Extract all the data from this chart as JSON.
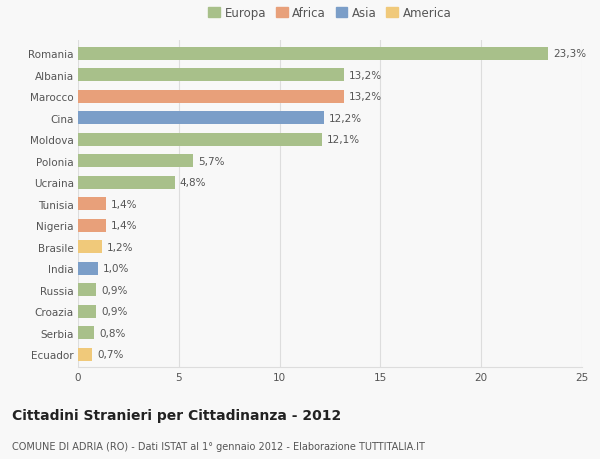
{
  "countries": [
    "Romania",
    "Albania",
    "Marocco",
    "Cina",
    "Moldova",
    "Polonia",
    "Ucraina",
    "Tunisia",
    "Nigeria",
    "Brasile",
    "India",
    "Russia",
    "Croazia",
    "Serbia",
    "Ecuador"
  ],
  "values": [
    23.3,
    13.2,
    13.2,
    12.2,
    12.1,
    5.7,
    4.8,
    1.4,
    1.4,
    1.2,
    1.0,
    0.9,
    0.9,
    0.8,
    0.7
  ],
  "continents": [
    "Europa",
    "Europa",
    "Africa",
    "Asia",
    "Europa",
    "Europa",
    "Europa",
    "Africa",
    "Africa",
    "America",
    "Asia",
    "Europa",
    "Europa",
    "Europa",
    "America"
  ],
  "colors": {
    "Europa": "#a8c08a",
    "Africa": "#e8a07a",
    "Asia": "#7b9ec8",
    "America": "#f0c97a"
  },
  "xlim": [
    0,
    25
  ],
  "xticks": [
    0,
    5,
    10,
    15,
    20,
    25
  ],
  "title": "Cittadini Stranieri per Cittadinanza - 2012",
  "subtitle": "COMUNE DI ADRIA (RO) - Dati ISTAT al 1° gennaio 2012 - Elaborazione TUTTITALIA.IT",
  "background_color": "#f8f8f8",
  "bar_height": 0.6,
  "label_fontsize": 7.5,
  "tick_fontsize": 7.5,
  "title_fontsize": 10,
  "subtitle_fontsize": 7,
  "grid_color": "#dddddd",
  "legend_order": [
    "Europa",
    "Africa",
    "Asia",
    "America"
  ]
}
